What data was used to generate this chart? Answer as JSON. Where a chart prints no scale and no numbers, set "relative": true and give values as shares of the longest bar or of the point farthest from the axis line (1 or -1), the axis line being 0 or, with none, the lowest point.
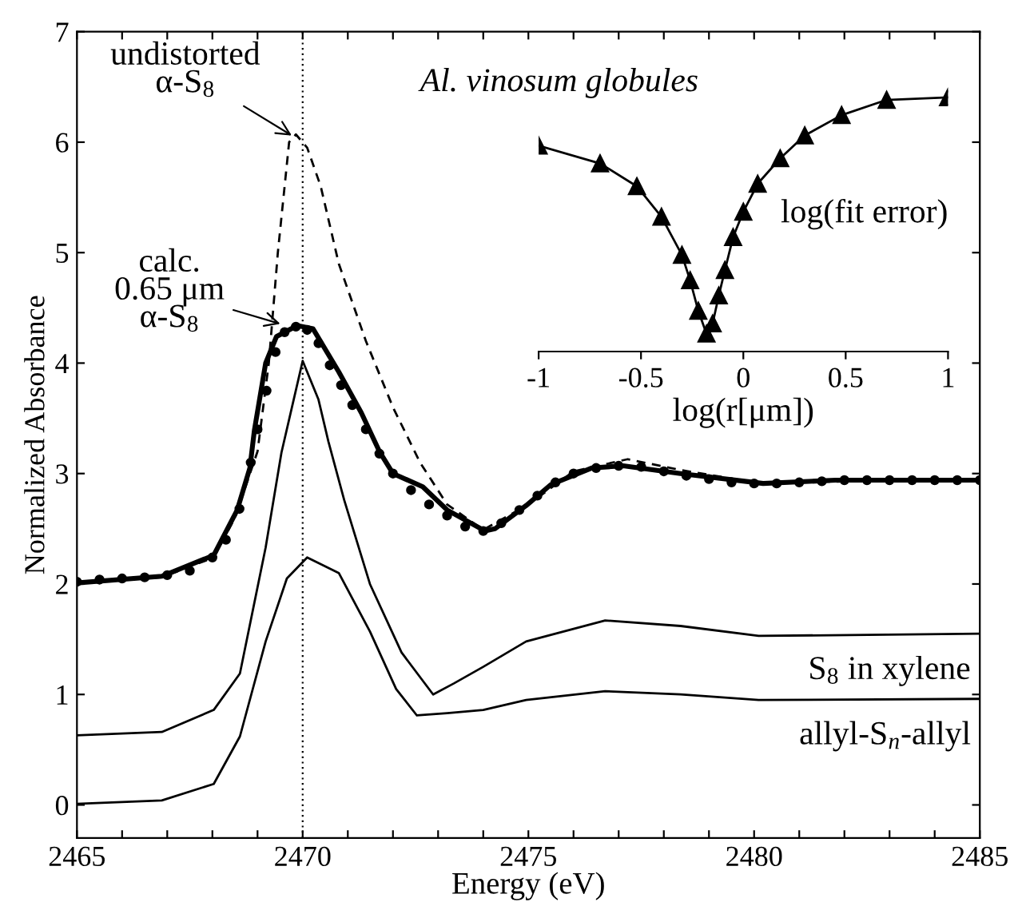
{
  "chart_data": [
    {
      "type": "line",
      "title": "Al. vinosum globules",
      "xlabel": "Energy (eV)",
      "ylabel": "Normalized Absorbance",
      "xlim": [
        2465,
        2485
      ],
      "ylim": [
        -0.3,
        7
      ],
      "xticks": [
        2465,
        {
          "value": 2466,
          "label": null
        },
        {
          "value": 2467,
          "label": null
        },
        {
          "value": 2468,
          "label": null
        },
        {
          "value": 2469,
          "label": null
        },
        2470,
        {
          "value": 2471,
          "label": null
        },
        {
          "value": 2472,
          "label": null
        },
        {
          "value": 2473,
          "label": null
        },
        {
          "value": 2474,
          "label": null
        },
        2475,
        {
          "value": 2476,
          "label": null
        },
        {
          "value": 2477,
          "label": null
        },
        {
          "value": 2478,
          "label": null
        },
        {
          "value": 2479,
          "label": null
        },
        2480,
        {
          "value": 2481,
          "label": null
        },
        {
          "value": 2482,
          "label": null
        },
        {
          "value": 2483,
          "label": null
        },
        {
          "value": 2484,
          "label": null
        },
        2485
      ],
      "yticks": [
        0,
        1,
        2,
        3,
        4,
        5,
        6,
        7
      ],
      "grid": false,
      "legend": false,
      "series": [
        {
          "type": "scatter",
          "marker": "circle",
          "color": "#000000",
          "x": [
            2465,
            2465.5,
            2466,
            2466.5,
            2467,
            2467.5,
            2468,
            2468.3,
            2468.6,
            2468.85,
            2469.0,
            2469.2,
            2469.4,
            2469.6,
            2469.85,
            2470.1,
            2470.35,
            2470.6,
            2470.85,
            2471.1,
            2471.4,
            2471.7,
            2472.0,
            2472.4,
            2472.8,
            2473.2,
            2473.6,
            2474.0,
            2474.4,
            2474.8,
            2475.2,
            2475.6,
            2476.0,
            2476.5,
            2477.0,
            2477.5,
            2478.0,
            2478.5,
            2479.0,
            2479.5,
            2480.0,
            2480.5,
            2481.0,
            2481.5,
            2482.0,
            2482.5,
            2483.0,
            2483.5,
            2484.0,
            2484.5,
            2485.0
          ],
          "values": [
            2.02,
            2.04,
            2.05,
            2.06,
            2.08,
            2.12,
            2.24,
            2.4,
            2.68,
            3.1,
            3.4,
            3.75,
            4.1,
            4.28,
            4.33,
            4.3,
            4.18,
            3.98,
            3.8,
            3.62,
            3.4,
            3.18,
            3.0,
            2.85,
            2.72,
            2.62,
            2.52,
            2.48,
            2.55,
            2.67,
            2.8,
            2.92,
            3.0,
            3.05,
            3.07,
            3.06,
            3.02,
            2.98,
            2.95,
            2.92,
            2.91,
            2.91,
            2.92,
            2.93,
            2.94,
            2.94,
            2.94,
            2.94,
            2.94,
            2.94,
            2.94
          ]
        },
        {
          "type": "line",
          "line_style": "solid",
          "color": "#000000",
          "x": [
            2465,
            2466.88,
            2468.03,
            2468.55,
            2468.83,
            2468.93,
            2469.18,
            2469.42,
            2469.88,
            2470.23,
            2470.8,
            2471.3,
            2471.7,
            2472.0,
            2472.66,
            2473.2,
            2474.04,
            2474.26,
            2474.95,
            2475.5,
            2476.4,
            2477.1,
            2478.37,
            2480.2,
            2481.8,
            2485
          ],
          "values": [
            2.01,
            2.07,
            2.26,
            2.67,
            3.05,
            3.39,
            4.0,
            4.24,
            4.34,
            4.31,
            3.92,
            3.55,
            3.2,
            3.0,
            2.88,
            2.67,
            2.48,
            2.5,
            2.71,
            2.9,
            3.05,
            3.07,
            3.0,
            2.91,
            2.94,
            2.94
          ]
        },
        {
          "type": "line",
          "line_style": "dashed",
          "color": "#000000",
          "x": [
            2465,
            2466.88,
            2468.03,
            2468.5,
            2469.0,
            2469.25,
            2469.45,
            2469.7,
            2469.85,
            2470.1,
            2470.4,
            2470.8,
            2471.4,
            2472.0,
            2472.6,
            2473.2,
            2474.0,
            2475.0,
            2476.0,
            2477.2,
            2478.4,
            2480.0,
            2485
          ],
          "values": [
            2.02,
            2.06,
            2.24,
            2.6,
            3.2,
            4.0,
            5.0,
            6.0,
            6.07,
            5.95,
            5.6,
            4.9,
            4.2,
            3.6,
            3.1,
            2.72,
            2.49,
            2.72,
            3.02,
            3.13,
            3.03,
            2.92,
            2.94
          ]
        },
        {
          "type": "line",
          "line_style": "solid",
          "color": "#000000",
          "x": [
            2465,
            2466.88,
            2468.03,
            2468.61,
            2469.18,
            2469.53,
            2470.0,
            2470.35,
            2470.57,
            2470.92,
            2471.49,
            2472.19,
            2472.89,
            2473.35,
            2474.0,
            2474.95,
            2476.7,
            2478.37,
            2480.1,
            2485
          ],
          "values": [
            0.63,
            0.66,
            0.86,
            1.19,
            2.33,
            3.19,
            4.02,
            3.67,
            3.29,
            2.76,
            2.0,
            1.38,
            1.0,
            1.1,
            1.25,
            1.48,
            1.67,
            1.62,
            1.53,
            1.55
          ]
        },
        {
          "type": "line",
          "line_style": "solid",
          "color": "#000000",
          "x": [
            2465,
            2466.88,
            2468.03,
            2468.61,
            2469.18,
            2469.65,
            2470.1,
            2470.8,
            2471.49,
            2472.07,
            2472.53,
            2473.2,
            2474.0,
            2474.95,
            2476.7,
            2478.37,
            2480.1,
            2485
          ],
          "values": [
            0.01,
            0.04,
            0.19,
            0.62,
            1.48,
            2.05,
            2.24,
            2.1,
            1.57,
            1.05,
            0.81,
            0.83,
            0.86,
            0.95,
            1.03,
            1.0,
            0.95,
            0.96
          ]
        }
      ],
      "ref_lines": [
        {
          "axis": "x",
          "value": 2470,
          "line_style": "dotted",
          "color": "#000000"
        }
      ],
      "annotations": [
        {
          "text": "undistorted\nα-S$_{8}$",
          "x": 2469.8,
          "y": 6.05
        },
        {
          "text": "calc.\n0.65 μm\nα-S$_{8}$",
          "x": 2469.55,
          "y": 4.35
        },
        {
          "text": "S$_{8}$ in xylene",
          "x": 2485,
          "y": 1.55
        },
        {
          "text": "allyl-S$_{n}$-allyl",
          "x": 2485,
          "y": 0.96
        }
      ]
    },
    {
      "type": "line",
      "relative": true,
      "xlabel": "log(r[μm])",
      "ylabel": "log(fit error)",
      "xlim": [
        -1,
        1
      ],
      "xticks": [
        -1,
        -0.5,
        0,
        0.5,
        1
      ],
      "tick_labels": "x",
      "marker": "triangle",
      "line_style": "solid",
      "legend": false,
      "grid": false,
      "series": [
        {
          "color": "#000000",
          "x": [
            -1,
            -0.7,
            -0.52,
            -0.4,
            -0.3,
            -0.26,
            -0.22,
            -0.18,
            -0.15,
            -0.12,
            -0.09,
            -0.05,
            0,
            0.07,
            0.18,
            0.3,
            0.48,
            0.7,
            1
          ],
          "values": [
            0.81,
            0.74,
            0.65,
            0.53,
            0.38,
            0.28,
            0.16,
            0.07,
            0.11,
            0.22,
            0.32,
            0.45,
            0.55,
            0.66,
            0.76,
            0.85,
            0.93,
            0.99,
            1.0
          ]
        }
      ]
    }
  ]
}
